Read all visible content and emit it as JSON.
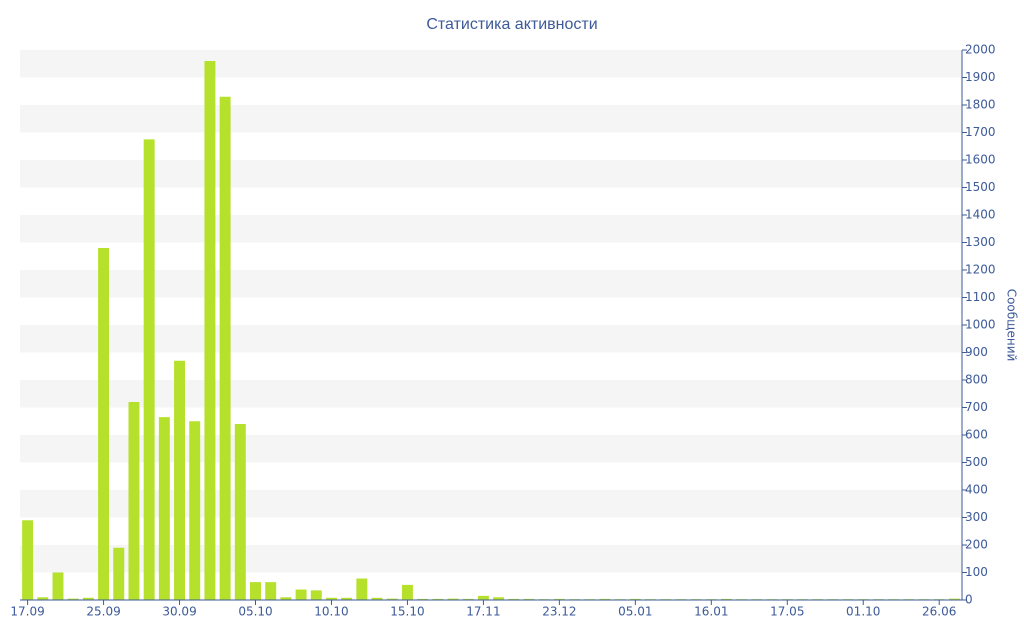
{
  "chart_data": {
    "type": "bar",
    "title": "Статистика активности",
    "y_label": "Сообщений",
    "categories": [
      "17.09",
      null,
      null,
      null,
      null,
      "25.09",
      null,
      null,
      null,
      null,
      "30.09",
      null,
      null,
      null,
      null,
      "05.10",
      null,
      null,
      null,
      null,
      "10.10",
      null,
      null,
      null,
      null,
      "15.10",
      null,
      null,
      null,
      null,
      "17.11",
      null,
      null,
      null,
      null,
      "23.12",
      null,
      null,
      null,
      null,
      "05.01",
      null,
      null,
      null,
      null,
      "16.01",
      null,
      null,
      null,
      null,
      "17.05",
      null,
      null,
      null,
      null,
      "01.10",
      null,
      null,
      null,
      null,
      "26.06",
      null
    ],
    "values": [
      290,
      10,
      100,
      5,
      8,
      1280,
      190,
      720,
      1675,
      665,
      870,
      650,
      1960,
      1830,
      640,
      65,
      65,
      10,
      38,
      35,
      8,
      8,
      78,
      8,
      5,
      55,
      4,
      4,
      5,
      4,
      15,
      10,
      4,
      4,
      3,
      4,
      3,
      3,
      4,
      3,
      4,
      3,
      3,
      3,
      3,
      3,
      4,
      3,
      3,
      3,
      3,
      3,
      3,
      3,
      3,
      3,
      3,
      3,
      3,
      3,
      3,
      5
    ],
    "color": "#b5e02b",
    "ylim": [
      0,
      2000
    ],
    "yticks": [
      0,
      100,
      200,
      300,
      400,
      500,
      600,
      700,
      800,
      900,
      1000,
      1100,
      1200,
      1300,
      1400,
      1500,
      1600,
      1700,
      1800,
      1900,
      2000
    ],
    "grid": true
  }
}
